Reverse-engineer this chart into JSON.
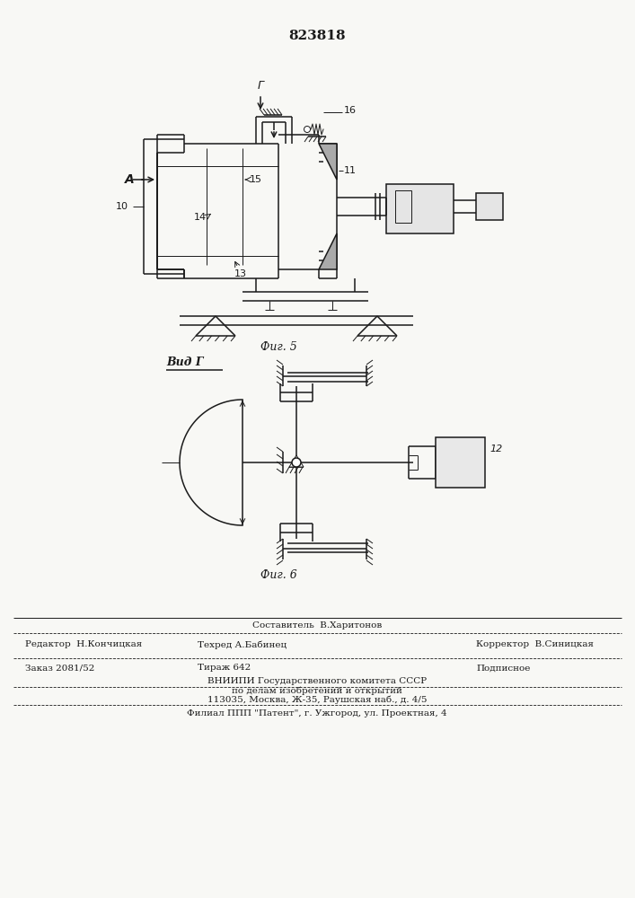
{
  "patent_number": "823818",
  "fig5_label": "Фиг. 5",
  "fig6_label": "Фиг. 6",
  "vid_label": "Вид Г",
  "arrow_A_label": "А",
  "label_10": "10",
  "label_11": "11",
  "label_12": "12",
  "label_13": "13",
  "label_14": "14",
  "label_15": "15",
  "label_16": "16",
  "label_G": "Г",
  "composer_line": "Составитель  В.Харитонов",
  "editor_label": "Редактор  Н.Кончицкая",
  "techred_label": "Техред А.Бабинец",
  "corrector_label": "Корректор  В.Синицкая",
  "order_label": "Заказ 2081/52",
  "tirazh_label": "Тираж 642",
  "podpisnoe_label": "Подписное",
  "vnipi_line1": "ВНИИПИ Государственного комитета СССР",
  "vnipi_line2": "по делам изобретений и открытий",
  "vnipi_line3": "113035, Москва, Ж-35, Раушская наб., д. 4/5",
  "filial_line": "Филиал ППП \"Патент\", г. Ужгород, ул. Проектная, 4",
  "bg_color": "#f8f8f5",
  "line_color": "#1a1a1a"
}
